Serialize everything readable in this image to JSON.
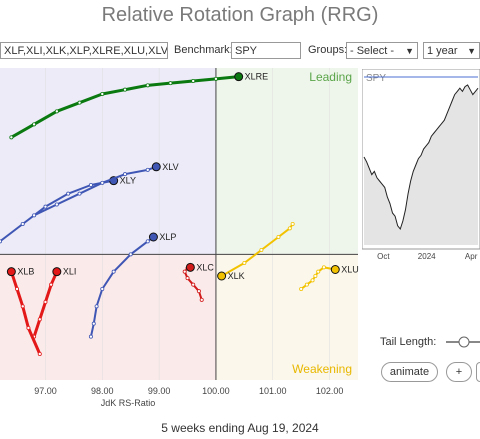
{
  "title": "Relative Rotation Graph (RRG)",
  "controls": {
    "symbols_value": "XLF,XLI,XLK,XLP,XLRE,XLU,XLV,XL",
    "benchmark_label": "Benchmark:",
    "benchmark_value": "SPY",
    "groups_label": "Groups:",
    "groups_value": "- Select -",
    "period_value": "1 year"
  },
  "rrg": {
    "quadrants": {
      "leading": "Leading",
      "weakening": "Weakening"
    },
    "x_axis_label": "JdK RS-Ratio",
    "x_ticks": [
      "97.00",
      "98.00",
      "99.00",
      "100.00",
      "101.00",
      "102.00"
    ],
    "quadrant_colors": {
      "leading": "#eef5ea",
      "weakening": "#fbf7ea",
      "lagging": "#fbeaea",
      "improving": "#ecebf7"
    }
  },
  "chart_data": {
    "type": "scatter",
    "title": "",
    "xlabel": "JdK RS-Ratio",
    "ylabel": "",
    "series": [
      {
        "name": "XLRE",
        "color": "#0a7a10",
        "x": [
          96.4,
          96.8,
          97.2,
          97.6,
          98.0,
          98.4,
          98.8,
          99.2,
          99.6,
          100.0,
          100.4
        ],
        "y": [
          100.6,
          100.9,
          101.2,
          101.4,
          101.6,
          101.7,
          101.8,
          101.85,
          101.9,
          101.95,
          102.0
        ]
      },
      {
        "name": "XLY",
        "color": "#3f56b5",
        "x": [
          96.2,
          96.6,
          97.0,
          97.4,
          97.8,
          98.2
        ],
        "y": [
          98.2,
          98.6,
          99.0,
          99.3,
          99.5,
          99.6
        ]
      },
      {
        "name": "XLV",
        "color": "#3f56b5",
        "x": [
          96.8,
          97.2,
          97.6,
          98.0,
          98.4,
          98.8,
          98.95
        ],
        "y": [
          98.8,
          99.05,
          99.3,
          99.55,
          99.75,
          99.85,
          99.92
        ]
      },
      {
        "name": "XLP",
        "color": "#3f56b5",
        "x": [
          97.8,
          97.85,
          97.9,
          98.0,
          98.2,
          98.5,
          98.8,
          98.9
        ],
        "y": [
          96.0,
          96.3,
          96.7,
          97.1,
          97.5,
          97.9,
          98.2,
          98.3
        ]
      },
      {
        "name": "XLI",
        "color": "#e31818",
        "x": [
          96.8,
          96.9,
          97.0,
          97.1,
          97.2
        ],
        "y": [
          96.0,
          96.4,
          96.8,
          97.2,
          97.5
        ]
      },
      {
        "name": "XLB",
        "color": "#e31818",
        "x": [
          96.9,
          96.7,
          96.6,
          96.5,
          96.4
        ],
        "y": [
          95.6,
          96.2,
          96.7,
          97.1,
          97.5
        ]
      },
      {
        "name": "XLC",
        "color": "#d11a1a",
        "x": [
          99.75,
          99.7,
          99.6,
          99.5,
          99.45,
          99.5,
          99.55
        ],
        "y": [
          96.85,
          97.05,
          97.2,
          97.35,
          97.5,
          97.58,
          97.6
        ]
      },
      {
        "name": "XLK",
        "color": "#f2c200",
        "x": [
          101.35,
          101.3,
          101.1,
          100.8,
          100.5,
          100.1
        ],
        "y": [
          98.6,
          98.5,
          98.3,
          98.0,
          97.7,
          97.4
        ]
      },
      {
        "name": "XLU",
        "color": "#f2c200",
        "x": [
          101.5,
          101.6,
          101.7,
          101.75,
          101.8,
          101.9,
          102.1
        ],
        "y": [
          97.1,
          97.2,
          97.3,
          97.4,
          97.5,
          97.6,
          97.55
        ]
      }
    ]
  },
  "mini_chart": {
    "symbol": "SPY",
    "x_ticks": [
      "Oct",
      "2024",
      "Apr"
    ],
    "values": [
      0.55,
      0.52,
      0.48,
      0.44,
      0.46,
      0.42,
      0.4,
      0.38,
      0.36,
      0.3,
      0.26,
      0.2,
      0.18,
      0.12,
      0.1,
      0.15,
      0.22,
      0.32,
      0.4,
      0.46,
      0.5,
      0.54,
      0.56,
      0.6,
      0.62,
      0.64,
      0.68,
      0.7,
      0.72,
      0.74,
      0.76,
      0.78,
      0.82,
      0.86,
      0.9,
      0.94,
      0.96,
      0.98,
      0.96,
      0.99,
      1.0,
      0.97,
      0.94,
      0.96,
      0.98
    ]
  },
  "tail": {
    "label": "Tail Length:",
    "value": 1
  },
  "buttons": {
    "animate": "animate",
    "plus": "+"
  },
  "footer": "5 weeks ending Aug 19, 2024"
}
